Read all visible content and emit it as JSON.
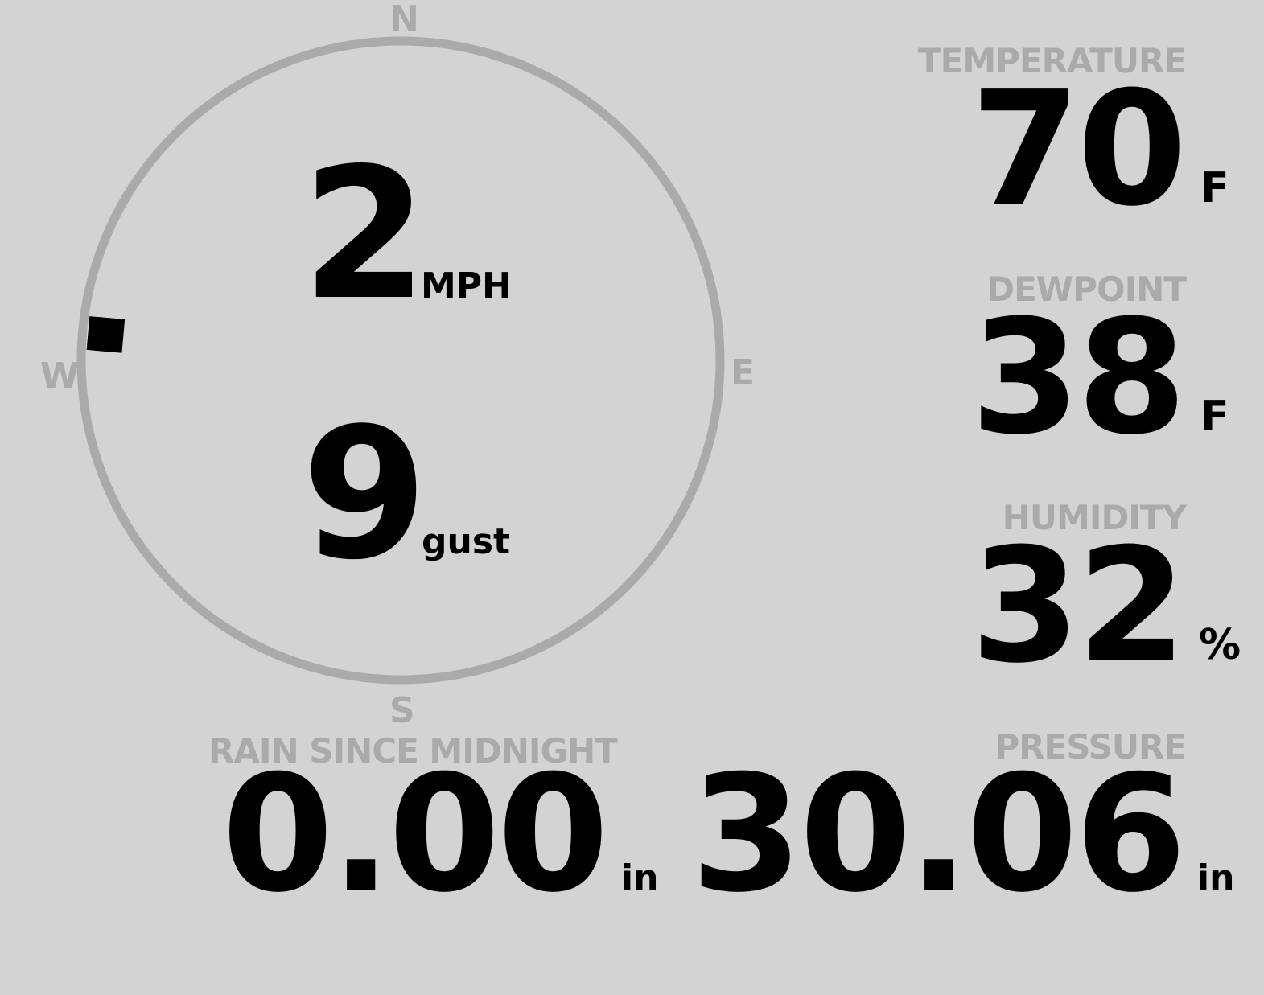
{
  "wind": {
    "speed": "2",
    "speed_unit": "MPH",
    "gust": "9",
    "gust_unit": "gust",
    "direction_deg": 275,
    "compass": {
      "n": "N",
      "e": "E",
      "s": "S",
      "w": "W"
    }
  },
  "temperature": {
    "label": "TEMPERATURE",
    "value": "70",
    "unit": "F"
  },
  "dewpoint": {
    "label": "DEWPOINT",
    "value": "38",
    "unit": "F"
  },
  "humidity": {
    "label": "HUMIDITY",
    "value": "32",
    "unit": "%"
  },
  "rain": {
    "label": "RAIN SINCE MIDNIGHT",
    "value": "0.00",
    "unit": "in"
  },
  "pressure": {
    "label": "PRESSURE",
    "value": "30.06",
    "unit": "in"
  },
  "colors": {
    "background": "#d3d3d3",
    "label": "#aaaaaa",
    "value": "#000000"
  }
}
